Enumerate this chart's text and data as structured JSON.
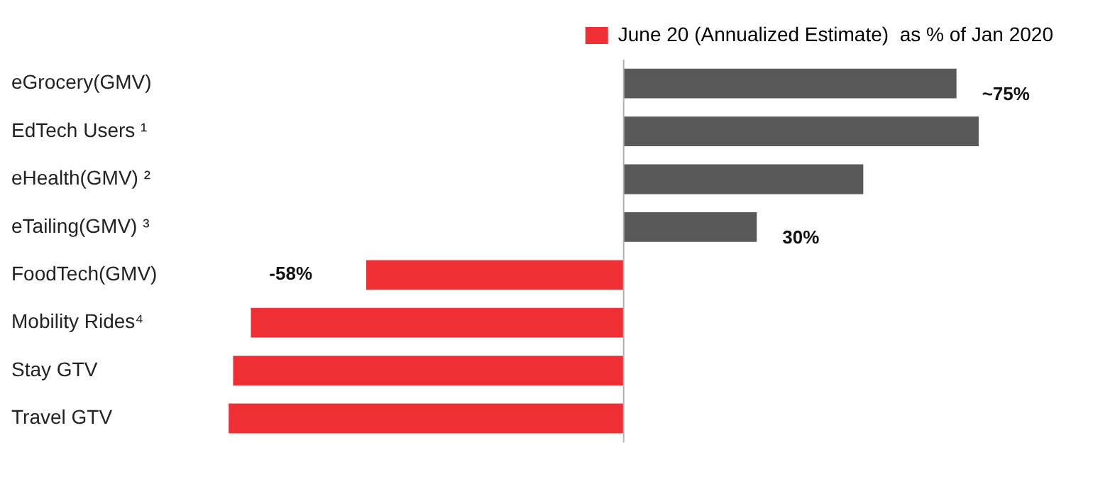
{
  "chart_data": {
    "type": "bar",
    "orientation": "horizontal",
    "categories": [
      "eGrocery(GMV)",
      "EdTech Users ¹",
      "eHealth(GMV) ²",
      "eTailing(GMV) ³",
      "FoodTech(GMV)",
      "Mobility Rides⁴",
      "Stay GTV",
      "Travel GTV"
    ],
    "series": [
      {
        "name": "June 20 (Annualized Estimate)  as % of Jan 2020",
        "color": "#ee3035",
        "colors": [
          "#595959",
          "#595959",
          "#595959",
          "#595959",
          "#ee3035",
          "#ee3035",
          "#ee3035",
          "#ee3035"
        ],
        "values": [
          75,
          80,
          54,
          30,
          -58,
          -84,
          -88,
          -89
        ],
        "value_labels": [
          "~75%",
          null,
          null,
          "30%",
          "-58%",
          null,
          null,
          null
        ]
      }
    ],
    "legend": "top right",
    "grid": false,
    "tick_labels": "y"
  }
}
